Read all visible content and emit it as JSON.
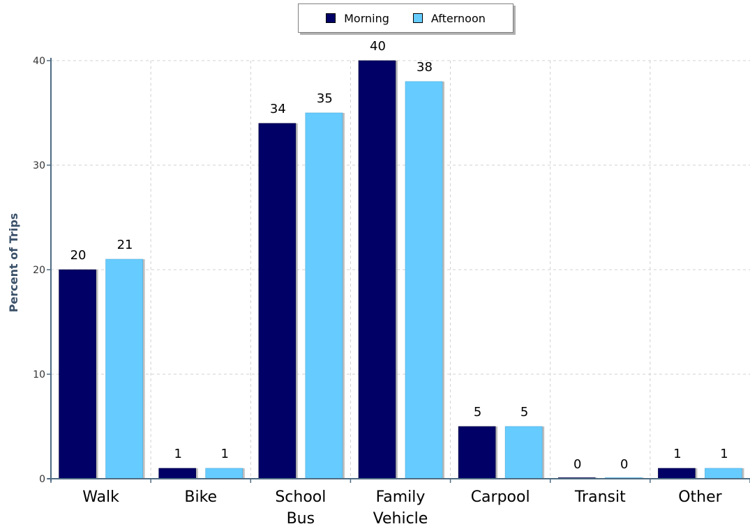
{
  "chart_data": {
    "type": "bar",
    "categories": [
      "Walk",
      "Bike",
      "School Bus",
      "Family Vehicle",
      "Carpool",
      "Transit",
      "Other"
    ],
    "series": [
      {
        "name": "Morning",
        "values": [
          20,
          1,
          34,
          40,
          5,
          0,
          1
        ],
        "color": "#000066"
      },
      {
        "name": "Afternoon",
        "values": [
          21,
          1,
          35,
          38,
          5,
          0,
          1
        ],
        "color": "#66ccff"
      }
    ],
    "ylabel": "Percent of Trips",
    "xlabel": "",
    "ylim": [
      0,
      40
    ],
    "yticks": [
      0,
      10,
      20,
      30,
      40
    ],
    "grid": true,
    "legend_position": "top-center",
    "data_labels": true
  }
}
